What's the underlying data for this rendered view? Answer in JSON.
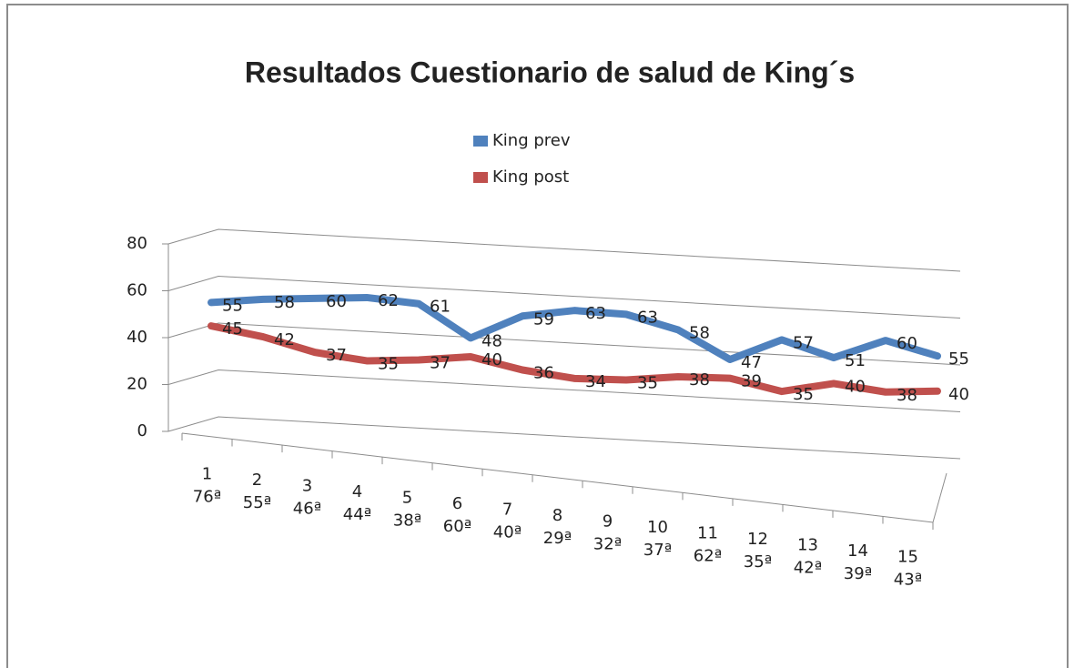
{
  "chart_data": {
    "type": "line3d",
    "title": "Resultados Cuestionario de salud de King´s",
    "categories": [
      [
        "1",
        "76ª"
      ],
      [
        "2",
        "55ª"
      ],
      [
        "3",
        "46ª"
      ],
      [
        "4",
        "44ª"
      ],
      [
        "5",
        "38ª"
      ],
      [
        "6",
        "60ª"
      ],
      [
        "7",
        "40ª"
      ],
      [
        "8",
        "29ª"
      ],
      [
        "9",
        "32ª"
      ],
      [
        "10",
        "37ª"
      ],
      [
        "11",
        "62ª"
      ],
      [
        "12",
        "35ª"
      ],
      [
        "13",
        "42ª"
      ],
      [
        "14",
        "39ª"
      ],
      [
        "15",
        "43ª"
      ]
    ],
    "series": [
      {
        "name": "King prev",
        "color": "#4f81bd",
        "values": [
          55,
          58,
          60,
          62,
          61,
          48,
          59,
          63,
          63,
          58,
          47,
          57,
          51,
          60,
          55
        ]
      },
      {
        "name": "King post",
        "color": "#c0504d",
        "values": [
          45,
          42,
          37,
          35,
          37,
          40,
          36,
          34,
          35,
          38,
          39,
          35,
          40,
          38,
          40
        ]
      }
    ],
    "ylim": [
      0,
      80
    ],
    "yticks": [
      0,
      20,
      40,
      60,
      80
    ],
    "grid": true,
    "legend": "top"
  }
}
